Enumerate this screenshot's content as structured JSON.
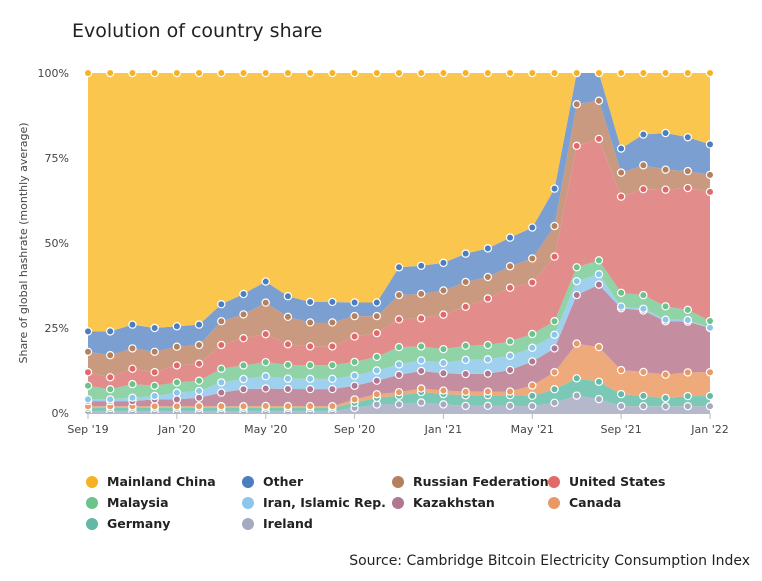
{
  "chart_data": {
    "type": "area",
    "title": "Evolution of country share",
    "ylabel": "Share of global hashrate (monthly average)",
    "xlabel": "",
    "ylim": [
      0,
      100
    ],
    "y_ticks": [
      "0%",
      "25%",
      "50%",
      "75%",
      "100%"
    ],
    "x_ticks": [
      {
        "label": "Sep '19",
        "x": "2019-09"
      },
      {
        "label": "Jan '20",
        "x": "2020-01"
      },
      {
        "label": "May '20",
        "x": "2020-05"
      },
      {
        "label": "Sep '20",
        "x": "2020-09"
      },
      {
        "label": "Jan '21",
        "x": "2021-01"
      },
      {
        "label": "May '21",
        "x": "2021-05"
      },
      {
        "label": "Sep '21",
        "x": "2021-09"
      },
      {
        "label": "Jan '22",
        "x": "2022-01"
      }
    ],
    "x": [
      "2019-09",
      "2019-10",
      "2019-11",
      "2019-12",
      "2020-01",
      "2020-02",
      "2020-03",
      "2020-04",
      "2020-05",
      "2020-06",
      "2020-07",
      "2020-08",
      "2020-09",
      "2020-10",
      "2020-11",
      "2020-12",
      "2021-01",
      "2021-02",
      "2021-03",
      "2021-04",
      "2021-05",
      "2021-06",
      "2021-07",
      "2021-08",
      "2021-09",
      "2021-10",
      "2021-11",
      "2021-12",
      "2022-01"
    ],
    "stacking": "cumulative",
    "series": [
      {
        "name": "Ireland",
        "color": "#b5b8cb",
        "values": [
          0.5,
          0.5,
          0.5,
          0.5,
          0.5,
          0.5,
          0.5,
          0.5,
          0.5,
          0.5,
          0.5,
          0.5,
          1.5,
          2.5,
          2.5,
          3,
          2.5,
          2,
          2,
          2,
          2,
          3,
          5,
          4,
          2,
          2,
          2,
          2,
          2
        ]
      },
      {
        "name": "Germany",
        "color": "#7cc8b7",
        "values": [
          1,
          1,
          1,
          1,
          1,
          1,
          1,
          1,
          1,
          1,
          1,
          1,
          1.5,
          2,
          2.5,
          3,
          3,
          3,
          3,
          3,
          3,
          4,
          5,
          5,
          3.5,
          3,
          2.5,
          3,
          3
        ]
      },
      {
        "name": "Canada",
        "color": "#eeaa7b",
        "values": [
          0.5,
          0.5,
          0.5,
          0.5,
          0.5,
          0.5,
          0.5,
          0.5,
          0.5,
          0.5,
          0.5,
          0.5,
          1,
          1,
          1,
          1,
          1,
          1,
          1,
          1,
          3,
          5,
          10,
          10,
          7,
          7,
          7,
          7,
          7
        ]
      },
      {
        "name": "Kazakhstan",
        "color": "#c58da0",
        "values": [
          1.5,
          1.5,
          1.5,
          2,
          2,
          2.5,
          4,
          5,
          5,
          5,
          5,
          5,
          4,
          4,
          5,
          5,
          5,
          5,
          5,
          6,
          7,
          7,
          14,
          18,
          18,
          18,
          16,
          15,
          13
        ]
      },
      {
        "name": "Iran, Islamic Rep.",
        "color": "#9fd0ee",
        "values": [
          0.5,
          0.5,
          1,
          1,
          2,
          2,
          3,
          3,
          3.5,
          3,
          3,
          3,
          3,
          3,
          3,
          3,
          3,
          4,
          4,
          4,
          4,
          4,
          4,
          3,
          0.5,
          0.5,
          0.5,
          0.5,
          0.1
        ]
      },
      {
        "name": "Malaysia",
        "color": "#8fd3a6",
        "values": [
          4,
          3,
          4,
          3,
          3,
          3,
          4,
          4,
          4,
          4,
          4,
          4,
          4,
          4,
          5,
          4,
          4,
          4,
          4,
          4,
          4,
          4,
          4,
          4,
          4,
          4,
          4,
          3,
          2
        ]
      },
      {
        "name": "United States",
        "color": "#e38c8c",
        "values": [
          4,
          3.5,
          4.5,
          4,
          5,
          5,
          7,
          8,
          8,
          6,
          5.5,
          5.5,
          7.5,
          7,
          8,
          8,
          10,
          11,
          13,
          15,
          15,
          19,
          35,
          35,
          28,
          31,
          35,
          36,
          38
        ]
      },
      {
        "name": "Russian Federation",
        "color": "#c99a80",
        "values": [
          6,
          6.5,
          6,
          6,
          5.5,
          5.5,
          7,
          7,
          9,
          8,
          7,
          7,
          6,
          5,
          7,
          7,
          7,
          7,
          6,
          6,
          7,
          9,
          12,
          11,
          7,
          7,
          6,
          5,
          5
        ]
      },
      {
        "name": "Other",
        "color": "#7a9fd0",
        "values": [
          6,
          7,
          7,
          7,
          6,
          6,
          5,
          6,
          6,
          6,
          6,
          6,
          4,
          4,
          8,
          8,
          8,
          8,
          8,
          8,
          9,
          11,
          9,
          8,
          7,
          9,
          11,
          10,
          9
        ]
      },
      {
        "name": "Mainland China",
        "color": "#fbc64d",
        "values": [
          76,
          76,
          74,
          75,
          74.5,
          74,
          68,
          65,
          59.5,
          65,
          67,
          67,
          67.5,
          67.5,
          56,
          55,
          55,
          51,
          49,
          46,
          45,
          34,
          0,
          0,
          22,
          18,
          18,
          19,
          21
        ]
      }
    ],
    "legend": [
      {
        "name": "Mainland China",
        "color": "#f5b323"
      },
      {
        "name": "Other",
        "color": "#4a7ec0"
      },
      {
        "name": "Russian Federation",
        "color": "#b4805d"
      },
      {
        "name": "United States",
        "color": "#e06a6a"
      },
      {
        "name": "Malaysia",
        "color": "#6bc28a"
      },
      {
        "name": "Iran, Islamic Rep.",
        "color": "#8cc6ec"
      },
      {
        "name": "Kazakhstan",
        "color": "#b07792"
      },
      {
        "name": "Canada",
        "color": "#e89a66"
      },
      {
        "name": "Germany",
        "color": "#61b9a6"
      },
      {
        "name": "Ireland",
        "color": "#a6aac0"
      }
    ],
    "legend_placement": "bottom",
    "grid": false
  },
  "source_text": "Source: Cambridge Bitcoin Electricity Consumption Index"
}
